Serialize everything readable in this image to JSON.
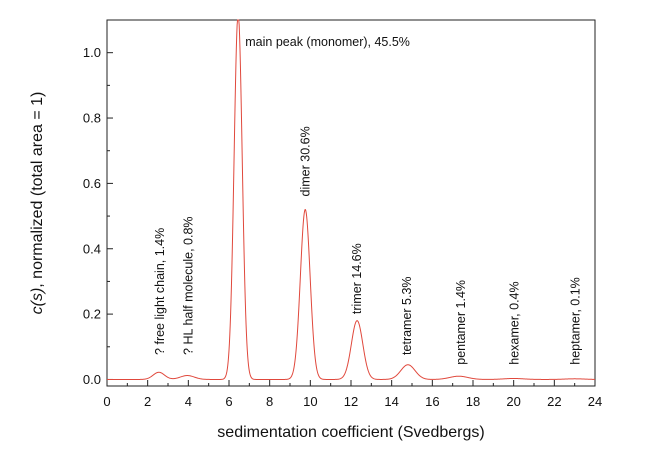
{
  "chart_data": {
    "type": "line",
    "title": "",
    "xlabel": "sedimentation coefficient (Svedbergs)",
    "ylabel_italic": "c(s)",
    "ylabel_rest": ", normalized (total area = 1)",
    "xlim": [
      0,
      24
    ],
    "ylim": [
      -0.02,
      1.1
    ],
    "x_ticks": [
      0,
      2,
      4,
      6,
      8,
      10,
      12,
      14,
      16,
      18,
      20,
      22,
      24
    ],
    "y_ticks": [
      0.0,
      0.2,
      0.4,
      0.6,
      0.8,
      1.0
    ],
    "grid": false,
    "line_color": "#e0483c",
    "series": [
      {
        "peaks": [
          {
            "center": 2.55,
            "height": 0.022,
            "width": 0.28
          },
          {
            "center": 3.95,
            "height": 0.012,
            "width": 0.35
          },
          {
            "center": 6.45,
            "height": 1.12,
            "width": 0.2
          },
          {
            "center": 9.75,
            "height": 0.52,
            "width": 0.24
          },
          {
            "center": 12.3,
            "height": 0.18,
            "width": 0.28
          },
          {
            "center": 14.8,
            "height": 0.045,
            "width": 0.35
          },
          {
            "center": 17.3,
            "height": 0.01,
            "width": 0.45
          },
          {
            "center": 20.0,
            "height": 0.003,
            "width": 0.5
          },
          {
            "center": 23.0,
            "height": 0.002,
            "width": 0.5
          }
        ]
      }
    ],
    "annotations": [
      {
        "text": "? free light chain, 1.4%",
        "x": 2.6,
        "y": 0.075,
        "rotation": -90
      },
      {
        "text": "? HL half molecule, 0.8%",
        "x": 4.0,
        "y": 0.075,
        "rotation": -90
      },
      {
        "text": "main peak (monomer), 45.5%",
        "x": 6.8,
        "y": 1.02,
        "rotation": 0
      },
      {
        "text": "dimer 30.6%",
        "x": 9.75,
        "y": 0.56,
        "rotation": -90
      },
      {
        "text": "trimer 14.6%",
        "x": 12.3,
        "y": 0.2,
        "rotation": -90
      },
      {
        "text": "tetramer 5.3%",
        "x": 14.75,
        "y": 0.075,
        "rotation": -90
      },
      {
        "text": "pentamer 1.4%",
        "x": 17.4,
        "y": 0.045,
        "rotation": -90
      },
      {
        "text": "hexamer, 0.4%",
        "x": 20.05,
        "y": 0.045,
        "rotation": -90
      },
      {
        "text": "heptamer, 0.1%",
        "x": 23.05,
        "y": 0.045,
        "rotation": -90
      }
    ]
  }
}
